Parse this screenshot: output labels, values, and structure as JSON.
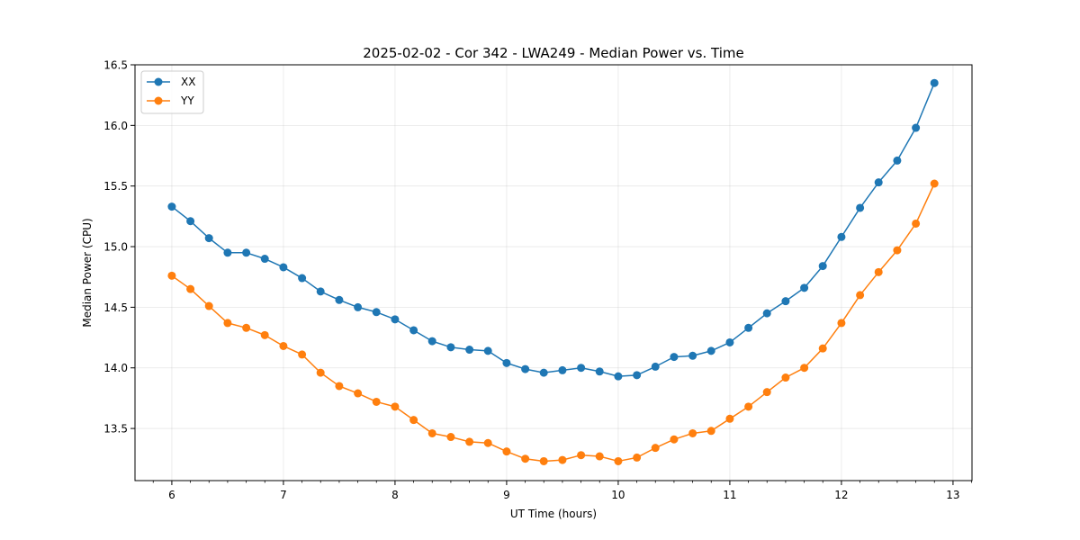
{
  "chart_data": {
    "type": "line",
    "title": "2025-02-02 - Cor 342 - LWA249 - Median Power vs. Time",
    "xlabel": "UT Time (hours)",
    "ylabel": "Median Power (CPU)",
    "xlim": [
      5.67,
      13.17
    ],
    "ylim": [
      13.07,
      16.5
    ],
    "x_ticks": [
      6,
      7,
      8,
      9,
      10,
      11,
      12,
      13
    ],
    "y_ticks": [
      13.5,
      14.0,
      14.5,
      15.0,
      15.5,
      16.0,
      16.5
    ],
    "x_tick_labels": [
      "6",
      "7",
      "8",
      "9",
      "10",
      "11",
      "12",
      "13"
    ],
    "y_tick_labels": [
      "13.5",
      "14.0",
      "14.5",
      "15.0",
      "15.5",
      "16.0",
      "16.5"
    ],
    "grid": true,
    "legend_position": "top-left",
    "x": [
      6.0,
      6.167,
      6.333,
      6.5,
      6.667,
      6.833,
      7.0,
      7.167,
      7.333,
      7.5,
      7.667,
      7.833,
      8.0,
      8.167,
      8.333,
      8.5,
      8.667,
      8.833,
      9.0,
      9.167,
      9.333,
      9.5,
      9.667,
      9.833,
      10.0,
      10.167,
      10.333,
      10.5,
      10.667,
      10.833,
      11.0,
      11.167,
      11.333,
      11.5,
      11.667,
      11.833,
      12.0,
      12.167,
      12.333,
      12.5,
      12.667,
      12.833
    ],
    "series": [
      {
        "name": "XX",
        "color": "#1f77b4",
        "values": [
          15.33,
          15.21,
          15.07,
          14.95,
          14.95,
          14.9,
          14.83,
          14.74,
          14.63,
          14.56,
          14.5,
          14.46,
          14.4,
          14.31,
          14.22,
          14.17,
          14.15,
          14.14,
          14.04,
          13.99,
          13.96,
          13.98,
          14.0,
          13.97,
          13.93,
          13.94,
          14.01,
          14.09,
          14.1,
          14.14,
          14.21,
          14.33,
          14.45,
          14.55,
          14.66,
          14.84,
          15.08,
          15.32,
          15.53,
          15.71,
          15.98,
          16.35
        ]
      },
      {
        "name": "YY",
        "color": "#ff7f0e",
        "values": [
          14.76,
          14.65,
          14.51,
          14.37,
          14.33,
          14.27,
          14.18,
          14.11,
          13.96,
          13.85,
          13.79,
          13.72,
          13.68,
          13.57,
          13.46,
          13.43,
          13.39,
          13.38,
          13.31,
          13.25,
          13.23,
          13.24,
          13.28,
          13.27,
          13.23,
          13.26,
          13.34,
          13.41,
          13.46,
          13.48,
          13.58,
          13.68,
          13.8,
          13.92,
          14.0,
          14.16,
          14.37,
          14.6,
          14.79,
          14.97,
          15.19,
          15.52
        ]
      }
    ]
  }
}
